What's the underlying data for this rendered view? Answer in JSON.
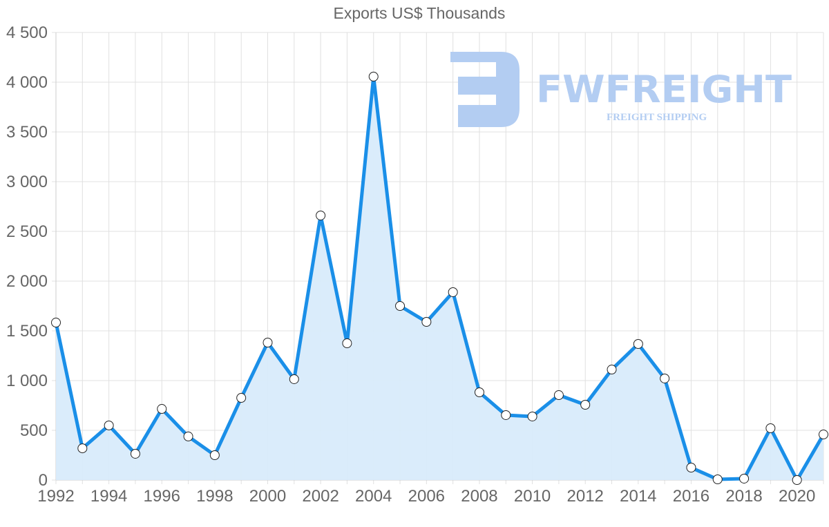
{
  "chart_data": {
    "type": "line",
    "title": "Exports US$ Thousands",
    "xlabel": "",
    "ylabel": "",
    "ylim": [
      0,
      4500
    ],
    "y_ticks": [
      "0",
      "500",
      "1 000",
      "1 500",
      "2 000",
      "2 500",
      "3 000",
      "3 500",
      "4 000",
      "4 500"
    ],
    "x_tick_labels": [
      "1992",
      "1994",
      "1996",
      "1998",
      "2000",
      "2002",
      "2004",
      "2006",
      "2008",
      "2010",
      "2012",
      "2014",
      "2016",
      "2018",
      "2020"
    ],
    "grid": true,
    "legend": "none",
    "x": [
      1992,
      1993,
      1994,
      1995,
      1996,
      1997,
      1998,
      1999,
      2000,
      2001,
      2002,
      2003,
      2004,
      2005,
      2006,
      2007,
      2008,
      2009,
      2010,
      2011,
      2012,
      2013,
      2014,
      2015,
      2016,
      2017,
      2018,
      2019,
      2020,
      2021
    ],
    "series": [
      {
        "name": "Exports US$ Thousands",
        "values": [
          1583,
          319,
          549,
          264,
          715,
          438,
          250,
          826,
          1382,
          1014,
          2660,
          1375,
          4056,
          1750,
          1590,
          1889,
          882,
          653,
          639,
          854,
          757,
          1111,
          1368,
          1021,
          125,
          7,
          14,
          521,
          0,
          458
        ],
        "fill": true
      }
    ]
  },
  "watermark": {
    "brand": "FWFREIGHT",
    "tagline": "FREIGHT SHIPPING"
  },
  "colors": {
    "line": "#1a8fe8",
    "fill": "#d8ebfb",
    "grid": "#e0e0e0",
    "text": "#666666",
    "watermark": "#b3cdf2"
  }
}
